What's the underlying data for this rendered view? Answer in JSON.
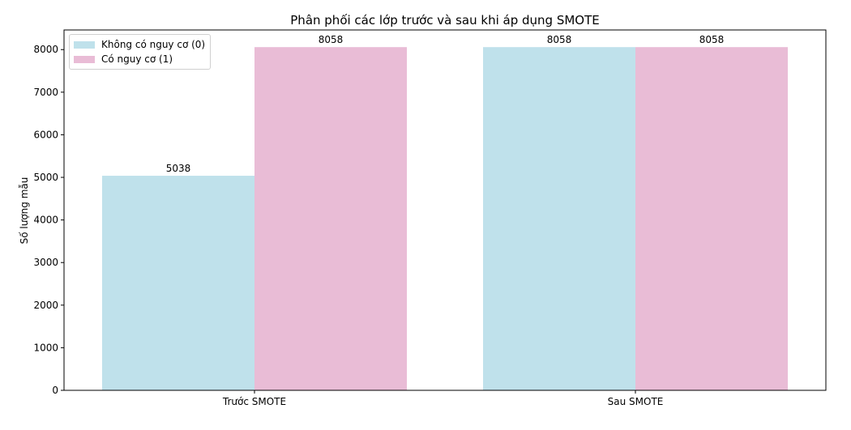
{
  "chart_data": {
    "type": "bar",
    "title": "Phân phối các lớp trước và sau khi áp dụng SMOTE",
    "xlabel": "",
    "ylabel": "Số lượng mẫu",
    "categories": [
      "Trước SMOTE",
      "Sau SMOTE"
    ],
    "series": [
      {
        "name": "Không có nguy cơ (0)",
        "values": [
          5038,
          8058
        ],
        "color": "#add8e6"
      },
      {
        "name": "Có nguy cơ (1)",
        "values": [
          8058,
          8058
        ],
        "color": "#e3a9cb"
      }
    ],
    "ylim": [
      0,
      8460.9
    ],
    "yticks": [
      0,
      1000,
      2000,
      3000,
      4000,
      5000,
      6000,
      7000,
      8000
    ],
    "grid": false,
    "legend_position": "top-left"
  }
}
